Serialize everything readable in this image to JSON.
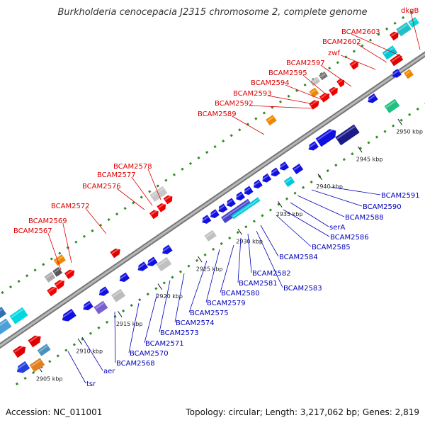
{
  "header": {
    "title": "Burkholderia cenocepacia J2315 chromosome 2, complete genome"
  },
  "footer": {
    "accession": "Accession: NC_011001",
    "summary": "Topology: circular; Length: 3,217,062 bp; Genes: 2,819"
  },
  "colors": {
    "top_label": "#dd0000",
    "bottom_label": "#0000bb",
    "backbone": "#999999",
    "dots": "#2e8b22"
  },
  "kbp_labels": [
    "2905 kbp",
    "2910 kbp",
    "2915 kbp",
    "2920 kbp",
    "2925 kbp",
    "2930 kbp",
    "2935 kbp",
    "2940 kbp",
    "2945 kbp",
    "2950 kbp"
  ],
  "top_labels": [
    {
      "text": "dkgB"
    },
    {
      "text": "BCAM2603"
    },
    {
      "text": "BCAM2602"
    },
    {
      "text": "zwf"
    },
    {
      "text": "BCAM2597"
    },
    {
      "text": "BCAM2595"
    },
    {
      "text": "BCAM2594"
    },
    {
      "text": "BCAM2593"
    },
    {
      "text": "BCAM2592"
    },
    {
      "text": "BCAM2589"
    },
    {
      "text": "BCAM2578"
    },
    {
      "text": "BCAM2577"
    },
    {
      "text": "BCAM2576"
    },
    {
      "text": "BCAM2572"
    },
    {
      "text": "BCAM2569"
    },
    {
      "text": "BCAM2567"
    }
  ],
  "bottom_labels": [
    {
      "text": "BCAM2591"
    },
    {
      "text": "BCAM2590"
    },
    {
      "text": "BCAM2588"
    },
    {
      "text": "serA"
    },
    {
      "text": "BCAM2586"
    },
    {
      "text": "BCAM2585"
    },
    {
      "text": "BCAM2584"
    },
    {
      "text": "BCAM2583"
    },
    {
      "text": "BCAM2582"
    },
    {
      "text": "BCAM2581"
    },
    {
      "text": "BCAM2580"
    },
    {
      "text": "BCAM2579"
    },
    {
      "text": "BCAM2575"
    },
    {
      "text": "BCAM2574"
    },
    {
      "text": "BCAM2573"
    },
    {
      "text": "BCAM2571"
    },
    {
      "text": "BCAM2570"
    },
    {
      "text": "BCAM2568"
    },
    {
      "text": "aer"
    },
    {
      "text": "tsr"
    }
  ]
}
